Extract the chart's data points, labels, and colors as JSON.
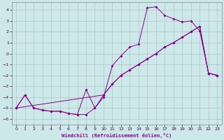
{
  "xlabel": "Windchill (Refroidissement éolien,°C)",
  "bg_color": "#cce8e8",
  "line_color": "#880088",
  "xlim": [
    -0.5,
    23.5
  ],
  "ylim": [
    -6.5,
    4.7
  ],
  "xticks": [
    0,
    1,
    2,
    3,
    4,
    5,
    6,
    7,
    8,
    9,
    10,
    11,
    12,
    13,
    14,
    15,
    16,
    17,
    18,
    19,
    20,
    21,
    22,
    23
  ],
  "yticks": [
    -6,
    -5,
    -4,
    -3,
    -2,
    -1,
    0,
    1,
    2,
    3,
    4
  ],
  "grid_color": "#aabbbb",
  "line1_x": [
    0,
    1,
    2,
    3,
    4,
    5,
    6,
    7,
    8,
    9,
    10,
    11,
    12,
    13,
    14,
    15,
    16,
    17,
    18,
    19,
    20,
    21,
    22,
    23
  ],
  "line1_y": [
    -5,
    -3.8,
    -5,
    -5.2,
    -5.3,
    -5.3,
    -5.5,
    -5.6,
    -3.3,
    -5.0,
    -4.0,
    -1.1,
    -0.2,
    0.6,
    0.85,
    4.2,
    4.3,
    3.5,
    3.2,
    2.9,
    3.0,
    2.1,
    -1.8,
    -2.0
  ],
  "line2_x": [
    0,
    1,
    2,
    3,
    4,
    5,
    6,
    7,
    8,
    9,
    10,
    11,
    12,
    13,
    14,
    15,
    16,
    17,
    18,
    19,
    20,
    21,
    22,
    23
  ],
  "line2_y": [
    -5,
    -3.8,
    -5,
    -5.2,
    -5.3,
    -5.3,
    -5.5,
    -5.6,
    -5.6,
    -5.0,
    -3.8,
    -2.8,
    -2.0,
    -1.5,
    -1.0,
    -0.5,
    0.0,
    0.6,
    1.0,
    1.5,
    2.0,
    2.5,
    -1.8,
    -2.0
  ],
  "line3_x": [
    0,
    10,
    11,
    12,
    13,
    14,
    15,
    16,
    17,
    18,
    19,
    20,
    21,
    22,
    23
  ],
  "line3_y": [
    -5,
    -3.8,
    -2.8,
    -2.0,
    -1.5,
    -1.0,
    -0.5,
    0.0,
    0.6,
    1.0,
    1.5,
    2.0,
    2.5,
    -1.8,
    -2.0
  ]
}
